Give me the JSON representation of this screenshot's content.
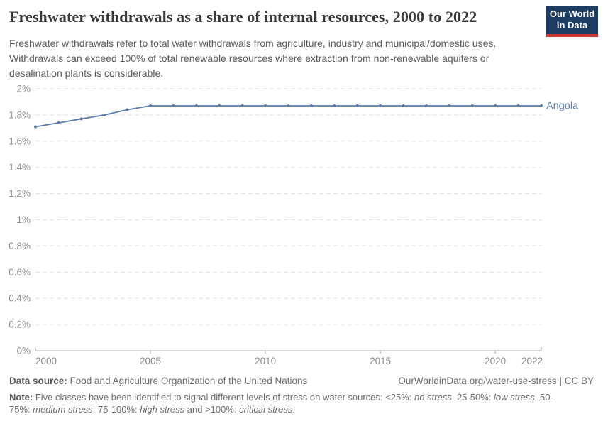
{
  "header": {
    "title": "Freshwater withdrawals as a share of internal resources, 2000 to 2022",
    "subtitle": "Freshwater withdrawals refer to total water withdrawals from agriculture, industry and municipal/domestic uses. Withdrawals can exceed 100% of total renewable resources where extraction from non-renewable aquifers or desalination plants is considerable.",
    "logo": {
      "line1": "Our World",
      "line2": "in Data",
      "bg_color": "#1d3d63",
      "stripe_color": "#cc3b36"
    }
  },
  "chart_data": {
    "type": "line",
    "title": "Freshwater withdrawals as a share of internal resources, 2000 to 2022",
    "x": [
      2000,
      2001,
      2002,
      2003,
      2004,
      2005,
      2006,
      2007,
      2008,
      2009,
      2010,
      2011,
      2012,
      2013,
      2014,
      2015,
      2016,
      2017,
      2018,
      2019,
      2020,
      2021,
      2022
    ],
    "series": [
      {
        "name": "Angola",
        "color": "#5b7cad",
        "values": [
          1.71,
          1.74,
          1.77,
          1.8,
          1.84,
          1.87,
          1.87,
          1.87,
          1.87,
          1.87,
          1.87,
          1.87,
          1.87,
          1.87,
          1.87,
          1.87,
          1.87,
          1.87,
          1.87,
          1.87,
          1.87,
          1.87,
          1.87
        ]
      }
    ],
    "xlabel": "",
    "ylabel": "",
    "xlim": [
      2000,
      2022
    ],
    "ylim": [
      0,
      2
    ],
    "x_ticks": [
      2000,
      2005,
      2010,
      2015,
      2020,
      2022
    ],
    "y_ticks": [
      0,
      0.2,
      0.4,
      0.6,
      0.8,
      1,
      1.2,
      1.4,
      1.6,
      1.8,
      2
    ],
    "y_tick_labels": [
      "0%",
      "0.2%",
      "0.4%",
      "0.6%",
      "0.8%",
      "1%",
      "1.2%",
      "1.4%",
      "1.6%",
      "1.8%",
      "2%"
    ],
    "grid": "horizontal-dashed",
    "legend_position": "end-of-line-label",
    "axis_color": "#adadad",
    "grid_color": "#e0e0e0",
    "tick_label_color": "#8a8a8a"
  },
  "footer": {
    "datasource_label": "Data source:",
    "datasource_value": " Food and Agriculture Organization of the United Nations",
    "link": "OurWorldinData.org/water-use-stress | CC BY",
    "note_label": "Note:",
    "note_segments": [
      {
        "t": " Five classes have been identified to signal different levels of stress on water sources: <25%: ",
        "i": false
      },
      {
        "t": "no stress",
        "i": true
      },
      {
        "t": ", 25-50%: ",
        "i": false
      },
      {
        "t": "low stress",
        "i": true
      },
      {
        "t": ", 50-75%: ",
        "i": false
      },
      {
        "t": "medium stress",
        "i": true
      },
      {
        "t": ", 75-100%: ",
        "i": false
      },
      {
        "t": "high stress",
        "i": true
      },
      {
        "t": " and >100%: ",
        "i": false
      },
      {
        "t": "critical stress",
        "i": true
      },
      {
        "t": ".",
        "i": false
      }
    ]
  }
}
